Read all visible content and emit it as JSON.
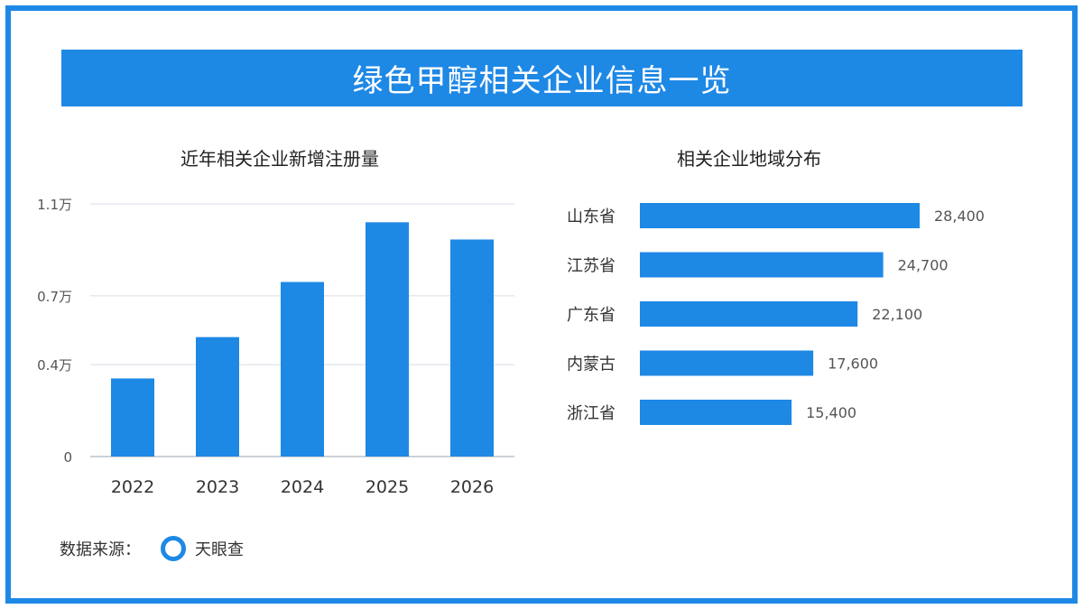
{
  "header": {
    "title": "绿色甲醇相关企业信息一览"
  },
  "colors": {
    "accent": "#1E88E5",
    "text": "#222222",
    "axis_text": "#555555",
    "grid": "#D6DCE4"
  },
  "chart_data": [
    {
      "type": "bar",
      "title": "近年相关企业新增注册量",
      "categories": [
        "2022",
        "2023",
        "2024",
        "2025",
        "2026"
      ],
      "values": [
        3400,
        5200,
        7600,
        10200,
        9450
      ],
      "y_ticks": [
        {
          "value": 0,
          "label": "0"
        },
        {
          "value": 4000,
          "label": "0.4万"
        },
        {
          "value": 7000,
          "label": "0.7万"
        },
        {
          "value": 11000,
          "label": "1.1万"
        }
      ],
      "ylim": [
        0,
        11000
      ],
      "grid": true
    },
    {
      "type": "bar",
      "orientation": "horizontal",
      "title": "相关企业地域分布",
      "categories": [
        "山东省",
        "江苏省",
        "广东省",
        "内蒙古",
        "浙江省"
      ],
      "values": [
        28400,
        24700,
        22100,
        17600,
        15400
      ],
      "data_labels": [
        "28,400",
        "24,700",
        "22,100",
        "17,600",
        "15,400"
      ]
    }
  ],
  "footer": {
    "source_label": "数据来源：",
    "source_name": "天眼查"
  }
}
